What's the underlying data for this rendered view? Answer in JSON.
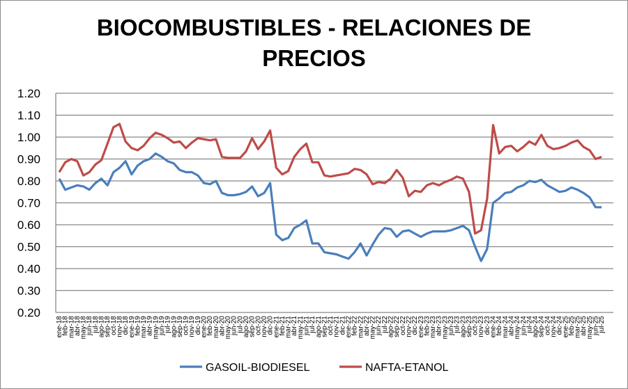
{
  "chart_data": {
    "type": "line",
    "title_lines": [
      "BIOCOMBUSTIBLES - RELACIONES DE",
      "PRECIOS"
    ],
    "xlabel": "",
    "ylabel": "",
    "ylim": [
      0.2,
      1.2
    ],
    "yticks": [
      "0.20",
      "0.30",
      "0.40",
      "0.50",
      "0.60",
      "0.70",
      "0.80",
      "0.90",
      "1.00",
      "1.10",
      "1.20"
    ],
    "grid": true,
    "legend_position": "bottom",
    "months": [
      "ene",
      "feb",
      "mar",
      "abr",
      "may",
      "jun",
      "jul",
      "ago",
      "sep",
      "oct",
      "nov",
      "dic"
    ],
    "years": [
      "18",
      "19",
      "20",
      "21",
      "22",
      "23",
      "24",
      "25"
    ],
    "last_month_2025": "jul",
    "series": [
      {
        "name": "GASOIL-BIODIESEL",
        "color": "#4a7ebb",
        "values": [
          0.81,
          0.76,
          0.77,
          0.78,
          0.775,
          0.76,
          0.79,
          0.81,
          0.78,
          0.84,
          0.86,
          0.89,
          0.83,
          0.87,
          0.89,
          0.9,
          0.925,
          0.91,
          0.89,
          0.88,
          0.85,
          0.84,
          0.84,
          0.825,
          0.79,
          0.785,
          0.8,
          0.745,
          0.735,
          0.735,
          0.74,
          0.75,
          0.775,
          0.73,
          0.745,
          0.79,
          0.555,
          0.53,
          0.54,
          0.585,
          0.6,
          0.62,
          0.515,
          0.515,
          0.475,
          0.47,
          0.465,
          0.455,
          0.445,
          0.475,
          0.515,
          0.46,
          0.51,
          0.555,
          0.585,
          0.58,
          0.545,
          0.57,
          0.575,
          0.56,
          0.545,
          0.56,
          0.57,
          0.57,
          0.57,
          0.575,
          0.585,
          0.595,
          0.575,
          0.5,
          0.435,
          0.49,
          0.7,
          0.72,
          0.745,
          0.75,
          0.77,
          0.78,
          0.8,
          0.795,
          0.805,
          0.78,
          0.765,
          0.75,
          0.755,
          0.77,
          0.76,
          0.745,
          0.725,
          0.68,
          0.68
        ]
      },
      {
        "name": "NAFTA-ETANOL",
        "color": "#be4b48",
        "values": [
          0.84,
          0.885,
          0.9,
          0.89,
          0.825,
          0.84,
          0.875,
          0.895,
          0.97,
          1.045,
          1.06,
          0.98,
          0.95,
          0.94,
          0.96,
          0.995,
          1.02,
          1.01,
          0.995,
          0.975,
          0.98,
          0.95,
          0.975,
          0.995,
          0.99,
          0.985,
          0.99,
          0.91,
          0.905,
          0.905,
          0.905,
          0.935,
          0.995,
          0.945,
          0.98,
          1.03,
          0.86,
          0.83,
          0.845,
          0.91,
          0.945,
          0.97,
          0.885,
          0.885,
          0.825,
          0.82,
          0.825,
          0.83,
          0.835,
          0.855,
          0.85,
          0.83,
          0.785,
          0.795,
          0.79,
          0.81,
          0.85,
          0.815,
          0.73,
          0.755,
          0.75,
          0.78,
          0.79,
          0.78,
          0.795,
          0.805,
          0.82,
          0.81,
          0.75,
          0.56,
          0.575,
          0.72,
          1.055,
          0.925,
          0.955,
          0.96,
          0.935,
          0.955,
          0.98,
          0.965,
          1.01,
          0.96,
          0.945,
          0.95,
          0.96,
          0.975,
          0.985,
          0.955,
          0.94,
          0.9,
          0.91
        ]
      }
    ]
  }
}
